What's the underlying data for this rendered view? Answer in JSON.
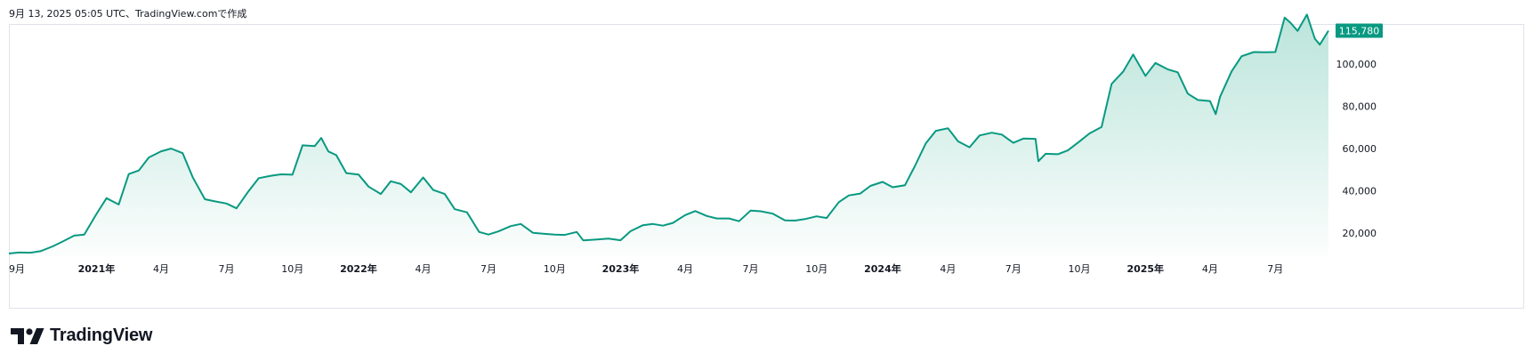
{
  "caption": "9月 13, 2025 05:05 UTC、TradingView.comで作成",
  "brand": {
    "name": "TradingView"
  },
  "colors": {
    "line": "#089981",
    "price_tag_bg": "#089981",
    "area_fill_top": "#b7e3d8"
  },
  "chart_data": {
    "type": "area",
    "price_axis_ticks": [
      "20,000",
      "40,000",
      "60,000",
      "80,000",
      "100,000"
    ],
    "ylim": [
      8000,
      120000
    ],
    "time_axis_labels": [
      {
        "label": "9月",
        "date": "2020-09-01",
        "year": false
      },
      {
        "label": "2021年",
        "date": "2021-01-01",
        "year": true
      },
      {
        "label": "4月",
        "date": "2021-04-01",
        "year": false
      },
      {
        "label": "7月",
        "date": "2021-07-01",
        "year": false
      },
      {
        "label": "10月",
        "date": "2021-10-01",
        "year": false
      },
      {
        "label": "2022年",
        "date": "2022-01-01",
        "year": true
      },
      {
        "label": "4月",
        "date": "2022-04-01",
        "year": false
      },
      {
        "label": "7月",
        "date": "2022-07-01",
        "year": false
      },
      {
        "label": "10月",
        "date": "2022-10-01",
        "year": false
      },
      {
        "label": "2023年",
        "date": "2023-01-01",
        "year": true
      },
      {
        "label": "4月",
        "date": "2023-04-01",
        "year": false
      },
      {
        "label": "7月",
        "date": "2023-07-01",
        "year": false
      },
      {
        "label": "10月",
        "date": "2023-10-01",
        "year": false
      },
      {
        "label": "2024年",
        "date": "2024-01-01",
        "year": true
      },
      {
        "label": "4月",
        "date": "2024-04-01",
        "year": false
      },
      {
        "label": "7月",
        "date": "2024-07-01",
        "year": false
      },
      {
        "label": "10月",
        "date": "2024-10-01",
        "year": false
      },
      {
        "label": "2025年",
        "date": "2025-01-01",
        "year": true
      },
      {
        "label": "4月",
        "date": "2025-04-01",
        "year": false
      },
      {
        "label": "7月",
        "date": "2025-07-01",
        "year": false
      }
    ],
    "last_price_label": "115,780",
    "last_price": 115780,
    "series": [
      {
        "points": [
          [
            "2020-09-01",
            10300
          ],
          [
            "2020-09-15",
            10800
          ],
          [
            "2020-10-01",
            10700
          ],
          [
            "2020-10-15",
            11400
          ],
          [
            "2020-11-01",
            13700
          ],
          [
            "2020-11-15",
            16000
          ],
          [
            "2020-12-01",
            18800
          ],
          [
            "2020-12-15",
            19300
          ],
          [
            "2021-01-01",
            29000
          ],
          [
            "2021-01-15",
            36500
          ],
          [
            "2021-02-01",
            33500
          ],
          [
            "2021-02-15",
            47900
          ],
          [
            "2021-03-01",
            49600
          ],
          [
            "2021-03-15",
            55800
          ],
          [
            "2021-04-01",
            58700
          ],
          [
            "2021-04-15",
            60000
          ],
          [
            "2021-05-01",
            57800
          ],
          [
            "2021-05-15",
            46400
          ],
          [
            "2021-06-01",
            36000
          ],
          [
            "2021-06-15",
            35000
          ],
          [
            "2021-07-01",
            34000
          ],
          [
            "2021-07-15",
            31700
          ],
          [
            "2021-08-01",
            39900
          ],
          [
            "2021-08-15",
            46000
          ],
          [
            "2021-09-01",
            47100
          ],
          [
            "2021-09-15",
            47800
          ],
          [
            "2021-10-01",
            47600
          ],
          [
            "2021-10-15",
            61500
          ],
          [
            "2021-11-01",
            61200
          ],
          [
            "2021-11-10",
            65000
          ],
          [
            "2021-11-20",
            58600
          ],
          [
            "2021-12-01",
            56900
          ],
          [
            "2021-12-15",
            48400
          ],
          [
            "2022-01-01",
            47700
          ],
          [
            "2022-01-15",
            42000
          ],
          [
            "2022-02-01",
            38500
          ],
          [
            "2022-02-15",
            44500
          ],
          [
            "2022-03-01",
            43200
          ],
          [
            "2022-03-15",
            39300
          ],
          [
            "2022-04-01",
            46300
          ],
          [
            "2022-04-15",
            40400
          ],
          [
            "2022-05-01",
            38500
          ],
          [
            "2022-05-15",
            31300
          ],
          [
            "2022-06-01",
            29800
          ],
          [
            "2022-06-18",
            20500
          ],
          [
            "2022-07-01",
            19300
          ],
          [
            "2022-07-15",
            20800
          ],
          [
            "2022-08-01",
            23300
          ],
          [
            "2022-08-15",
            24300
          ],
          [
            "2022-09-01",
            20100
          ],
          [
            "2022-09-15",
            19700
          ],
          [
            "2022-10-01",
            19300
          ],
          [
            "2022-10-15",
            19100
          ],
          [
            "2022-11-01",
            20500
          ],
          [
            "2022-11-10",
            16500
          ],
          [
            "2022-12-01",
            17000
          ],
          [
            "2022-12-15",
            17400
          ],
          [
            "2023-01-01",
            16600
          ],
          [
            "2023-01-15",
            20900
          ],
          [
            "2023-02-01",
            23700
          ],
          [
            "2023-02-15",
            24300
          ],
          [
            "2023-03-01",
            23500
          ],
          [
            "2023-03-15",
            24800
          ],
          [
            "2023-04-01",
            28500
          ],
          [
            "2023-04-15",
            30400
          ],
          [
            "2023-05-01",
            28100
          ],
          [
            "2023-05-15",
            26900
          ],
          [
            "2023-06-01",
            26900
          ],
          [
            "2023-06-15",
            25600
          ],
          [
            "2023-07-01",
            30600
          ],
          [
            "2023-07-15",
            30300
          ],
          [
            "2023-08-01",
            29200
          ],
          [
            "2023-08-18",
            26000
          ],
          [
            "2023-09-01",
            25900
          ],
          [
            "2023-09-15",
            26600
          ],
          [
            "2023-10-01",
            27900
          ],
          [
            "2023-10-15",
            27100
          ],
          [
            "2023-11-01",
            34600
          ],
          [
            "2023-11-15",
            37800
          ],
          [
            "2023-12-01",
            38700
          ],
          [
            "2023-12-15",
            42300
          ],
          [
            "2024-01-01",
            44200
          ],
          [
            "2024-01-15",
            41700
          ],
          [
            "2024-02-01",
            42600
          ],
          [
            "2024-02-15",
            51800
          ],
          [
            "2024-03-01",
            62400
          ],
          [
            "2024-03-15",
            68400
          ],
          [
            "2024-04-01",
            69600
          ],
          [
            "2024-04-15",
            63400
          ],
          [
            "2024-05-01",
            60600
          ],
          [
            "2024-05-15",
            66200
          ],
          [
            "2024-06-01",
            67500
          ],
          [
            "2024-06-15",
            66600
          ],
          [
            "2024-07-01",
            62700
          ],
          [
            "2024-07-15",
            64700
          ],
          [
            "2024-08-01",
            64600
          ],
          [
            "2024-08-05",
            54000
          ],
          [
            "2024-08-15",
            57500
          ],
          [
            "2024-09-01",
            57300
          ],
          [
            "2024-09-15",
            59100
          ],
          [
            "2024-10-01",
            63300
          ],
          [
            "2024-10-15",
            67100
          ],
          [
            "2024-11-01",
            70200
          ],
          [
            "2024-11-15",
            90600
          ],
          [
            "2024-12-01",
            96400
          ],
          [
            "2024-12-15",
            104500
          ],
          [
            "2025-01-01",
            94400
          ],
          [
            "2025-01-15",
            100500
          ],
          [
            "2025-02-01",
            97500
          ],
          [
            "2025-02-15",
            96100
          ],
          [
            "2025-03-01",
            86000
          ],
          [
            "2025-03-15",
            83000
          ],
          [
            "2025-04-01",
            82500
          ],
          [
            "2025-04-09",
            76300
          ],
          [
            "2025-04-15",
            84500
          ],
          [
            "2025-05-01",
            96500
          ],
          [
            "2025-05-15",
            103700
          ],
          [
            "2025-06-01",
            105700
          ],
          [
            "2025-06-15",
            105600
          ],
          [
            "2025-07-01",
            105700
          ],
          [
            "2025-07-14",
            122000
          ],
          [
            "2025-07-22",
            119600
          ],
          [
            "2025-08-01",
            115700
          ],
          [
            "2025-08-14",
            123400
          ],
          [
            "2025-08-25",
            112000
          ],
          [
            "2025-09-01",
            109200
          ],
          [
            "2025-09-13",
            115780
          ]
        ]
      }
    ]
  }
}
